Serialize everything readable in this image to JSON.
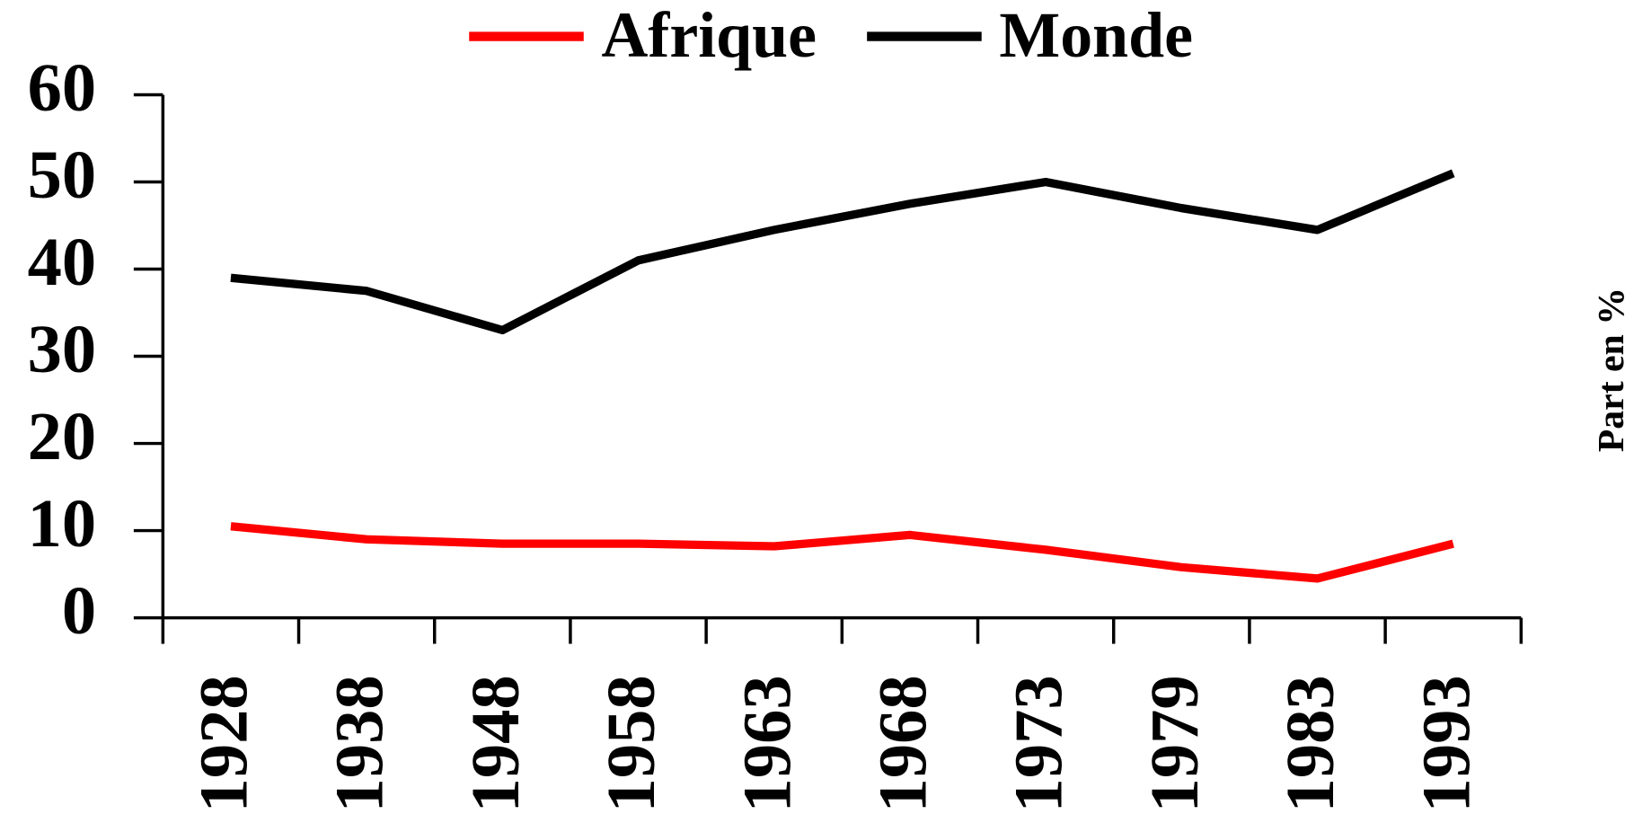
{
  "chart_data": {
    "type": "line",
    "categories": [
      "1928",
      "1938",
      "1948",
      "1958",
      "1963",
      "1968",
      "1973",
      "1979",
      "1983",
      "1993"
    ],
    "series": [
      {
        "name": "Afrique",
        "color": "#ff0000",
        "values": [
          10.5,
          9,
          8.5,
          8.5,
          8.2,
          9.5,
          7.8,
          5.8,
          4.5,
          8.5
        ]
      },
      {
        "name": "Monde",
        "color": "#000000",
        "values": [
          39,
          37.5,
          33,
          41,
          44.5,
          47.5,
          50,
          47,
          44.5,
          51
        ]
      }
    ],
    "y_label": "Part en %",
    "ylim": [
      0,
      60
    ],
    "yticks": [
      0,
      10,
      20,
      30,
      40,
      50,
      60
    ],
    "legend": "top"
  }
}
